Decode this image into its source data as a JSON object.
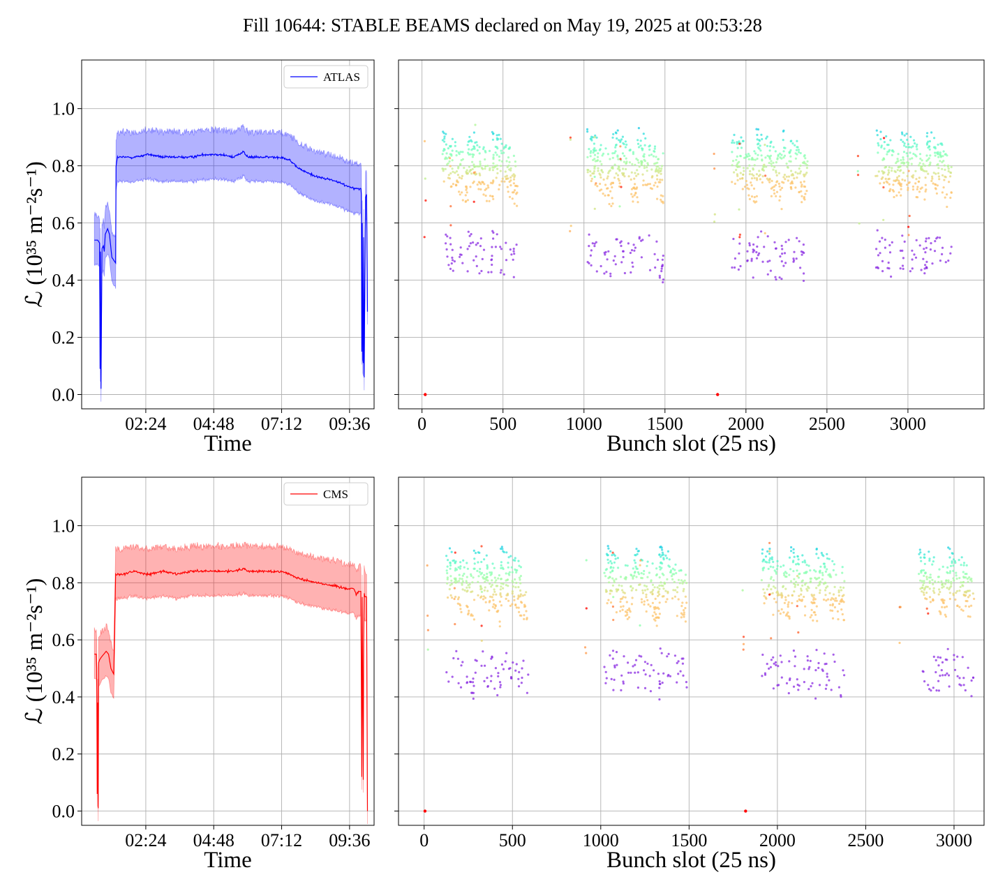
{
  "figure": {
    "title": "Fill 10644: STABLE BEAMS declared on May 19, 2025 at 00:53:28"
  },
  "colors": {
    "ATLAS": "#0000ff",
    "CMS": "#ff0000",
    "grid": "#b0b0b0",
    "background": "#ffffff"
  },
  "chart_data": [
    {
      "type": "line",
      "panel": "top-left",
      "title": "",
      "xlabel": "Time",
      "ylabel": "ℒ (10³⁵ m⁻²s⁻¹)",
      "xlim": [
        "00:08",
        "10:28"
      ],
      "ylim": [
        -0.05,
        1.17
      ],
      "xticks": [
        "02:24",
        "04:48",
        "07:12",
        "09:36"
      ],
      "yticks": [
        "0.0",
        "0.2",
        "0.4",
        "0.6",
        "0.8",
        "1.0"
      ],
      "grid": true,
      "legend": {
        "position": "upper right",
        "entries": [
          "ATLAS"
        ]
      },
      "series": [
        {
          "name": "ATLAS",
          "color": "#0000ff",
          "x": [
            "00:35",
            "00:42",
            "00:46",
            "00:47",
            "00:48",
            "00:49",
            "00:51",
            "00:54",
            "00:56",
            "00:58",
            "01:03",
            "01:07",
            "01:12",
            "01:20",
            "01:21",
            "01:24",
            "01:35",
            "02:00",
            "02:30",
            "03:00",
            "03:30",
            "04:00",
            "04:30",
            "05:00",
            "05:30",
            "05:51",
            "06:00",
            "06:30",
            "07:00",
            "07:12",
            "07:30",
            "07:40",
            "08:00",
            "08:30",
            "09:00",
            "09:30",
            "09:50",
            "10:00",
            "10:01",
            "10:02",
            "10:03",
            "10:04",
            "10:05",
            "10:06",
            "10:07",
            "10:08",
            "10:10",
            "10:12",
            "10:14"
          ],
          "y": [
            0.54,
            0.54,
            0.53,
            0.09,
            0.5,
            0.02,
            0.51,
            0.52,
            0.5,
            0.56,
            0.58,
            0.56,
            0.48,
            0.46,
            0.8,
            0.83,
            0.83,
            0.83,
            0.84,
            0.83,
            0.83,
            0.83,
            0.84,
            0.84,
            0.83,
            0.85,
            0.83,
            0.83,
            0.83,
            0.83,
            0.82,
            0.8,
            0.78,
            0.76,
            0.75,
            0.73,
            0.72,
            0.72,
            0.7,
            0.15,
            0.6,
            0.12,
            0.11,
            0.55,
            0.06,
            0.3,
            0.69,
            0.7,
            0.29
          ],
          "band_halfwidth": 0.09
        }
      ]
    },
    {
      "type": "scatter",
      "panel": "top-right",
      "title": "",
      "xlabel": "Bunch slot (25 ns)",
      "ylabel": "",
      "xlim": [
        -145,
        3470
      ],
      "ylim": [
        -0.05,
        1.17
      ],
      "xticks": [
        "0",
        "500",
        "1000",
        "1500",
        "2000",
        "2500",
        "3000"
      ],
      "grid": true,
      "trains": [
        125,
        280,
        430,
        1020,
        1175,
        1330,
        1910,
        2065,
        2220,
        2800,
        2955,
        3110
      ],
      "train_length_slots": 160,
      "color_scale": "rainbow",
      "note_points": [
        {
          "x": 20,
          "y": 0.0
        },
        {
          "x": 1825,
          "y": 0.0
        }
      ]
    },
    {
      "type": "line",
      "panel": "bottom-left",
      "title": "",
      "xlabel": "Time",
      "ylabel": "ℒ (10³⁵ m⁻²s⁻¹)",
      "xlim": [
        "00:08",
        "10:28"
      ],
      "ylim": [
        -0.05,
        1.17
      ],
      "xticks": [
        "02:24",
        "04:48",
        "07:12",
        "09:36"
      ],
      "yticks": [
        "0.0",
        "0.2",
        "0.4",
        "0.6",
        "0.8",
        "1.0"
      ],
      "grid": true,
      "legend": {
        "position": "upper right",
        "entries": [
          "CMS"
        ]
      },
      "series": [
        {
          "name": "CMS",
          "color": "#ff0000",
          "x": [
            "00:35",
            "00:39",
            "00:40",
            "00:41",
            "00:42",
            "00:43",
            "00:44",
            "00:46",
            "00:50",
            "00:55",
            "01:00",
            "01:05",
            "01:10",
            "01:16",
            "01:20",
            "01:35",
            "02:00",
            "02:30",
            "03:00",
            "03:30",
            "04:00",
            "04:30",
            "05:00",
            "05:30",
            "05:52",
            "06:00",
            "06:30",
            "07:00",
            "07:12",
            "07:30",
            "07:40",
            "08:00",
            "08:30",
            "09:00",
            "09:30",
            "09:40",
            "09:45",
            "09:50",
            "09:55",
            "10:00",
            "10:02",
            "10:03",
            "10:05",
            "10:06",
            "10:07",
            "10:08",
            "10:12",
            "10:14"
          ],
          "y": [
            0.55,
            0.55,
            0.5,
            0.06,
            0.38,
            0.01,
            0.52,
            0.53,
            0.54,
            0.55,
            0.56,
            0.55,
            0.5,
            0.48,
            0.83,
            0.83,
            0.84,
            0.83,
            0.84,
            0.83,
            0.84,
            0.84,
            0.84,
            0.84,
            0.85,
            0.84,
            0.84,
            0.84,
            0.84,
            0.83,
            0.82,
            0.81,
            0.8,
            0.79,
            0.78,
            0.78,
            0.78,
            0.76,
            0.77,
            0.77,
            0.12,
            0.75,
            0.11,
            0.6,
            0.76,
            0.75,
            0.75,
            0.0
          ],
          "band_halfwidth": 0.09
        }
      ]
    },
    {
      "type": "scatter",
      "panel": "bottom-right",
      "title": "",
      "xlabel": "Bunch slot (25 ns)",
      "ylabel": "",
      "xlim": [
        -145,
        3170
      ],
      "ylim": [
        -0.05,
        1.17
      ],
      "xticks": [
        "0",
        "500",
        "1000",
        "1500",
        "2000",
        "2500",
        "3000"
      ],
      "grid": true,
      "trains": [
        125,
        280,
        430,
        1020,
        1175,
        1330,
        1910,
        2065,
        2220,
        2800,
        2955
      ],
      "train_length_slots": 160,
      "color_scale": "rainbow",
      "note_points": [
        {
          "x": 5,
          "y": 0.0
        },
        {
          "x": 1820,
          "y": 0.0
        }
      ]
    }
  ]
}
